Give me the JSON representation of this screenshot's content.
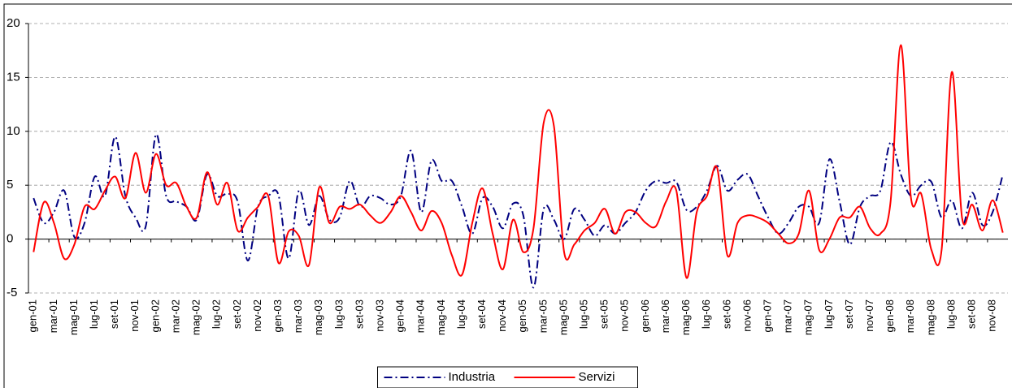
{
  "chart_data": {
    "type": "line",
    "categories": [
      "gen-01",
      null,
      "mar-01",
      null,
      "mag-01",
      null,
      "lug-01",
      null,
      "set-01",
      null,
      "nov-01",
      null,
      "gen-02",
      null,
      "mar-02",
      null,
      "mag-02",
      null,
      "lug-02",
      null,
      "set-02",
      null,
      "nov-02",
      null,
      "gen-03",
      null,
      "mar-03",
      null,
      "mag-03",
      null,
      "lug-03",
      null,
      "set-03",
      null,
      "nov-03",
      null,
      "gen-04",
      null,
      "mar-04",
      null,
      "mag-04",
      null,
      "lug-04",
      null,
      "set-04",
      null,
      "nov-04",
      null,
      "gen-05",
      null,
      "mar-05",
      null,
      "mag-05",
      null,
      "lug-05",
      null,
      "set-05",
      null,
      "nov-05",
      null,
      "gen-06",
      null,
      "mar-06",
      null,
      "mag-06",
      null,
      "lug-06",
      null,
      "set-06",
      null,
      "nov-06",
      null,
      "gen-07",
      null,
      "mar-07",
      null,
      "mag-07",
      null,
      "lug-07",
      null,
      "set-07",
      null,
      "nov-07",
      null,
      "gen-08",
      null,
      "mar-08",
      null,
      "mag-08",
      null,
      "lug-08",
      null,
      "set-08",
      null,
      "nov-08",
      null
    ],
    "series": [
      {
        "name": "Industria",
        "color": "#000080",
        "dash": "dash-dot",
        "values": [
          3.8,
          1.5,
          2.5,
          4.5,
          0.2,
          1.5,
          5.8,
          4,
          9.5,
          4,
          2,
          1.2,
          9.7,
          4,
          3.5,
          3,
          1.8,
          6,
          4,
          4.2,
          3.5,
          -2,
          3,
          4,
          4.1,
          -1.8,
          4.5,
          1.3,
          4,
          1.8,
          2,
          5.4,
          3,
          4,
          3.8,
          3.2,
          4,
          8.2,
          2.5,
          7.3,
          5.4,
          5.4,
          3,
          0.5,
          3.8,
          3,
          1,
          3.3,
          2.2,
          -4.5,
          2.8,
          1.8,
          0,
          2.8,
          1.8,
          0.3,
          1.3,
          0.5,
          1.5,
          2.5,
          4.5,
          5.4,
          5.2,
          5.3,
          2.7,
          3,
          4.5,
          6.8,
          4.5,
          5.5,
          6,
          4,
          2,
          0.5,
          1.5,
          3,
          3,
          1.5,
          7.4,
          3.5,
          -0.5,
          3,
          4,
          4.5,
          9,
          6,
          4,
          5,
          5.3,
          2,
          3.6,
          1,
          4.3,
          1.3,
          2.5,
          6
        ]
      },
      {
        "name": "Servizi",
        "color": "#ff0000",
        "dash": "solid",
        "values": [
          -1.2,
          3.4,
          1.5,
          -1.8,
          -0.5,
          3,
          2.8,
          4.5,
          5.8,
          3.8,
          8,
          4.3,
          7.9,
          5,
          5.2,
          3,
          2,
          6.2,
          3.2,
          5.2,
          0.8,
          2,
          3,
          4,
          -2.2,
          0.7,
          0.3,
          -2.4,
          4.8,
          1.5,
          3,
          2.8,
          3.2,
          2.2,
          1.5,
          2.5,
          4,
          2.5,
          0.8,
          2.6,
          1.5,
          -1.5,
          -3.3,
          1.5,
          4.7,
          0.5,
          -2.8,
          1.8,
          -1.2,
          1,
          10.8,
          10.5,
          -1.2,
          -0.5,
          0.8,
          1.5,
          2.8,
          0.5,
          2.5,
          2.5,
          1.5,
          1.2,
          3.5,
          4.5,
          -3.6,
          2.5,
          4,
          6.6,
          -1.5,
          1.5,
          2.2,
          2,
          1.5,
          0.5,
          -0.4,
          0.5,
          4.5,
          -1,
          0,
          2,
          2,
          3,
          1,
          0.5,
          3.5,
          18,
          3.8,
          4.2,
          -1,
          -1,
          15.5,
          2,
          3.2,
          0.8,
          3.6,
          0.6
        ]
      }
    ],
    "ylim": [
      -5,
      20
    ],
    "yticks": [
      -5,
      0,
      5,
      10,
      15,
      20
    ],
    "grid": true,
    "legend": "bottom"
  }
}
